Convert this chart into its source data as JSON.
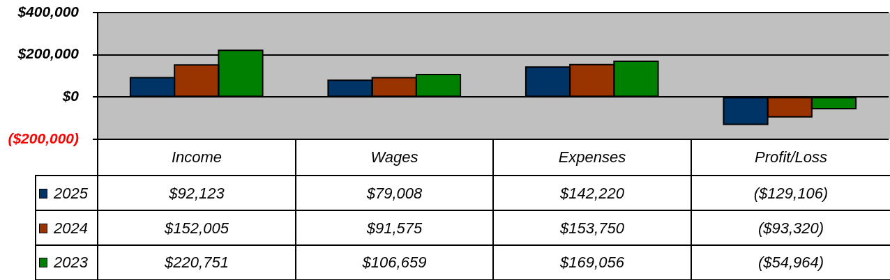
{
  "chart_data": {
    "type": "bar",
    "categories": [
      "Income",
      "Wages",
      "Expenses",
      "Profit/Loss"
    ],
    "series": [
      {
        "name": "2025",
        "color": "#003366",
        "values": [
          92123,
          79008,
          142220,
          -129106
        ],
        "value_labels": [
          "$92,123",
          "$79,008",
          "$142,220",
          "($129,106)"
        ]
      },
      {
        "name": "2024",
        "color": "#993300",
        "values": [
          152005,
          91575,
          153750,
          -93320
        ],
        "value_labels": [
          "$152,005",
          "$91,575",
          "$153,750",
          "($93,320)"
        ]
      },
      {
        "name": "2023",
        "color": "#008000",
        "values": [
          220751,
          106659,
          169056,
          -54964
        ],
        "value_labels": [
          "$220,751",
          "$106,659",
          "$169,056",
          "($54,964)"
        ]
      }
    ],
    "ylim": [
      -200000,
      400000
    ],
    "yticks": [
      {
        "value": 400000,
        "label": "$400,000"
      },
      {
        "value": 200000,
        "label": "$200,000"
      },
      {
        "value": 0,
        "label": "$0"
      },
      {
        "value": -200000,
        "label": "($200,000)"
      }
    ],
    "grid": "y",
    "legend": "bottom"
  }
}
